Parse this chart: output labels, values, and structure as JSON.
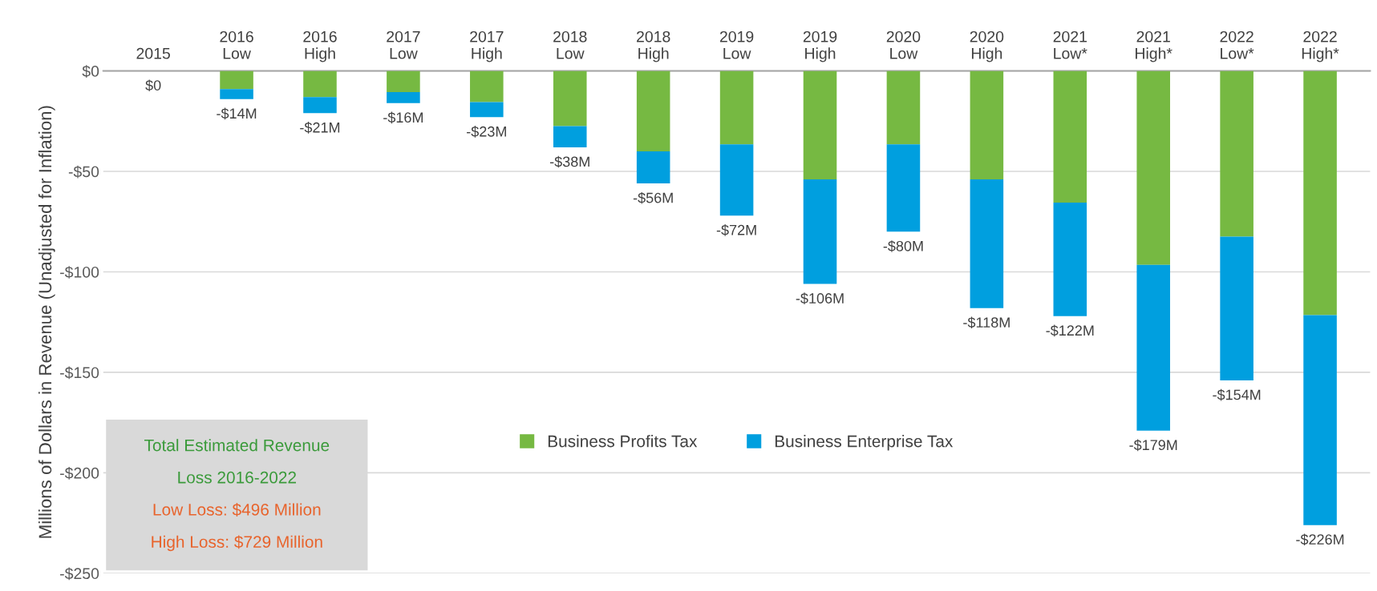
{
  "chart_data": {
    "type": "bar",
    "stacked": true,
    "ylabel": "Millions of Dollars in Revenue (Unadjusted for Inflation)",
    "categories": [
      "2015",
      "2016\nLow",
      "2016\nHigh",
      "2017\nLow",
      "2017\nHigh",
      "2018\nLow",
      "2018\nHigh",
      "2019\nLow",
      "2019\nHigh",
      "2020\nLow",
      "2020\nHigh",
      "2021\nLow*",
      "2021\nHigh*",
      "2022\nLow*",
      "2022\nHigh*"
    ],
    "series": [
      {
        "name": "Business Profits Tax",
        "color": "#76b942",
        "values": [
          0,
          -9,
          -13,
          -10.5,
          -15.5,
          -27.5,
          -40,
          -36.5,
          -54,
          -36.5,
          -54,
          -65.5,
          -96.5,
          -82.5,
          -121.5
        ]
      },
      {
        "name": "Business Enterprise Tax",
        "color": "#009fdf",
        "values": [
          0,
          -5,
          -8,
          -5.5,
          -7.5,
          -10.5,
          -16,
          -35.5,
          -52,
          -43.5,
          -64,
          -56.5,
          -82.5,
          -71.5,
          -104.5
        ]
      }
    ],
    "totals": [
      "$0",
      "-$14M",
      "-$21M",
      "-$16M",
      "-$23M",
      "-$38M",
      "-$56M",
      "-$72M",
      "-$106M",
      "-$80M",
      "-$118M",
      "-$122M",
      "-$179M",
      "-$154M",
      "-$226M"
    ],
    "ylim": [
      -250,
      0
    ],
    "yticks": [
      {
        "value": 0,
        "label": "$0"
      },
      {
        "value": -50,
        "label": "-$50"
      },
      {
        "value": -100,
        "label": "-$100"
      },
      {
        "value": -150,
        "label": "-$150"
      },
      {
        "value": -200,
        "label": "-$200"
      },
      {
        "value": -250,
        "label": "-$250"
      }
    ],
    "grid": "y",
    "legend": "center",
    "annotations": [
      "Total Estimated Revenue\nLoss 2016-2022",
      "Low Loss: $496 Million",
      "High Loss: $729 Million"
    ]
  }
}
